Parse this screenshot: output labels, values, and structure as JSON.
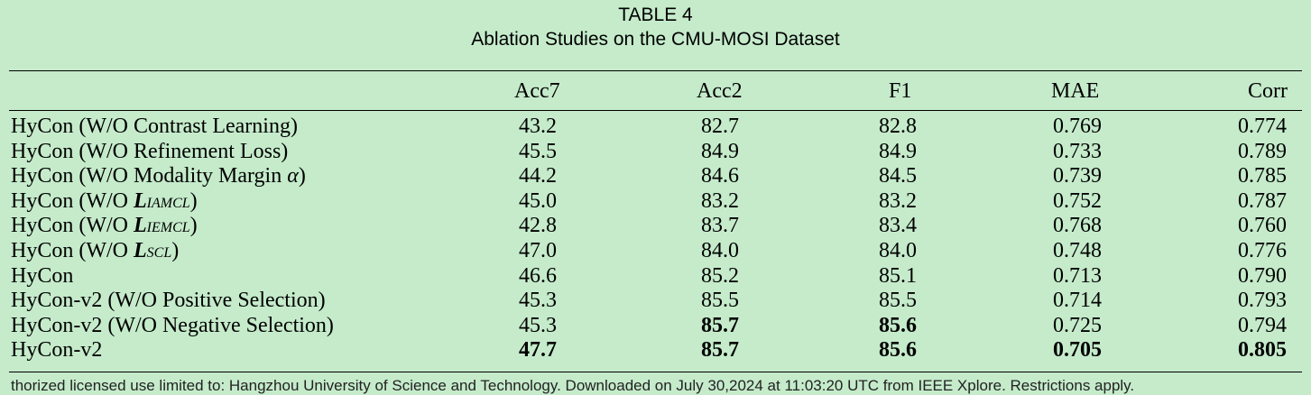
{
  "caption": {
    "label": "TABLE 4",
    "title": "Ablation Studies on the CMU-MOSI Dataset"
  },
  "table": {
    "headers": [
      "Acc7",
      "Acc2",
      "F1",
      "MAE",
      "Corr"
    ],
    "rows": [
      {
        "method": "HyCon (W/O Contrast Learning)",
        "values": [
          "43.2",
          "82.7",
          "82.8",
          "0.769",
          "0.774"
        ]
      },
      {
        "method": "HyCon (W/O Refinement Loss)",
        "values": [
          "45.5",
          "84.9",
          "84.9",
          "0.733",
          "0.789"
        ]
      },
      {
        "method_prefix": "HyCon (W/O Modality Margin ",
        "method_symbol": "α",
        "method_suffix": ")",
        "values": [
          "44.2",
          "84.6",
          "84.5",
          "0.739",
          "0.785"
        ]
      },
      {
        "method_prefix": "HyCon (W/O ",
        "loss": "L",
        "loss_sub": "IAMCL",
        "method_suffix": ")",
        "values": [
          "45.0",
          "83.2",
          "83.2",
          "0.752",
          "0.787"
        ]
      },
      {
        "method_prefix": "HyCon (W/O ",
        "loss": "L",
        "loss_sub": "IEMCL",
        "method_suffix": ")",
        "values": [
          "42.8",
          "83.7",
          "83.4",
          "0.768",
          "0.760"
        ]
      },
      {
        "method_prefix": "HyCon (W/O ",
        "loss": "L",
        "loss_sub": "SCL",
        "method_suffix": ")",
        "values": [
          "47.0",
          "84.0",
          "84.0",
          "0.748",
          "0.776"
        ]
      },
      {
        "method": "HyCon",
        "values": [
          "46.6",
          "85.2",
          "85.1",
          "0.713",
          "0.790"
        ]
      },
      {
        "method": "HyCon-v2 (W/O Positive Selection)",
        "values": [
          "45.3",
          "85.5",
          "85.5",
          "0.714",
          "0.793"
        ]
      },
      {
        "method": "HyCon-v2 (W/O Negative Selection)",
        "values": [
          "45.3",
          "85.7",
          "85.6",
          "0.725",
          "0.794"
        ],
        "bold": [
          false,
          true,
          true,
          false,
          false
        ]
      },
      {
        "method": "HyCon-v2",
        "values": [
          "47.7",
          "85.7",
          "85.6",
          "0.705",
          "0.805"
        ],
        "bold": [
          true,
          true,
          true,
          true,
          true
        ]
      }
    ]
  },
  "footer_cutoff": "thorized licensed use limited to: Hangzhou University of Science and Technology. Downloaded on July 30,2024 at 11:03:20 UTC from IEEE Xplore. Restrictions apply."
}
